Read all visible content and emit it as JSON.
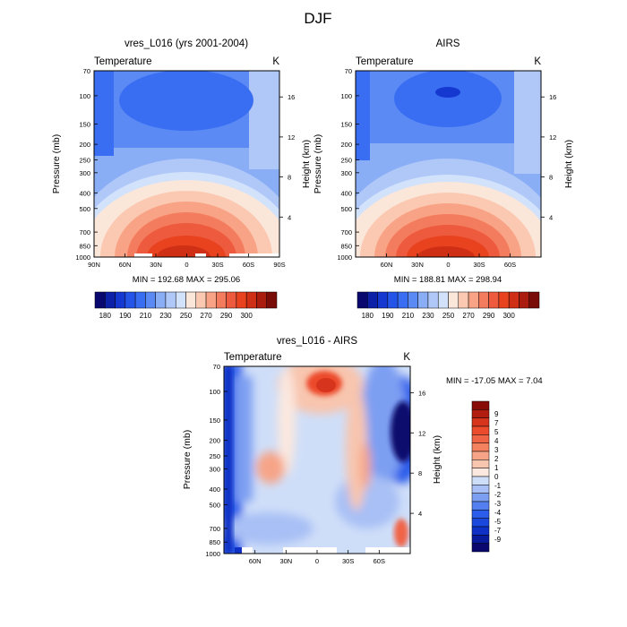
{
  "figure": {
    "title": "DJF"
  },
  "colors": {
    "temp_palette": [
      "#08086e",
      "#0c20a8",
      "#1538d0",
      "#2455e8",
      "#3a6ef2",
      "#5c8af4",
      "#8aaef6",
      "#b0c8f8",
      "#d2e2fb",
      "#fbe6da",
      "#fbc9b2",
      "#f9a386",
      "#f47c5e",
      "#ee5a3e",
      "#e8421f",
      "#cf2f14",
      "#aa1d0e",
      "#7a0c08"
    ],
    "diff_palette": [
      "#08086e",
      "#0a1a9c",
      "#0f30c4",
      "#1a47dc",
      "#2c5cea",
      "#5480ef",
      "#7d9ff2",
      "#a8c0f5",
      "#cfdef8",
      "#fbe8df",
      "#f8c5ae",
      "#f6a487",
      "#f4825f",
      "#f06446",
      "#ec4a2c",
      "#d7341d",
      "#b11d10",
      "#870c08"
    ]
  },
  "chart_data": [
    {
      "type": "heatmap",
      "title": "vres_L016 (yrs 2001-2004)",
      "left_label": "Temperature",
      "right_label": "K",
      "ylabel": "Pressure (mb)",
      "ylabel_right": "Height (km)",
      "x_ticks": [
        "90N",
        "60N",
        "30N",
        "0",
        "30S",
        "60S",
        "90S"
      ],
      "x_tick_values": [
        90,
        60,
        30,
        0,
        -30,
        -60,
        -90
      ],
      "xlim": [
        90,
        -90
      ],
      "y_ticks": [
        "70",
        "100",
        "150",
        "200",
        "250",
        "300",
        "400",
        "500",
        "700",
        "850",
        "1000"
      ],
      "y_tick_values": [
        70,
        100,
        150,
        200,
        250,
        300,
        400,
        500,
        700,
        850,
        1000
      ],
      "ylim": [
        70,
        1000
      ],
      "y_scale": "log",
      "height_ticks": [
        "4",
        "8",
        "12",
        "16"
      ],
      "height_tick_values": [
        4,
        8,
        12,
        16
      ],
      "stats": "MIN = 192.68  MAX = 295.06",
      "colorbar_labels": [
        "180",
        "190",
        "210",
        "230",
        "250",
        "270",
        "290",
        "300"
      ]
    },
    {
      "type": "heatmap",
      "title": "AIRS",
      "left_label": "Temperature",
      "right_label": "K",
      "ylabel": "Pressure (mb)",
      "ylabel_right": "Height (km)",
      "x_ticks": [
        "60N",
        "30N",
        "0",
        "30S",
        "60S"
      ],
      "x_tick_values": [
        60,
        30,
        0,
        -30,
        -60
      ],
      "xlim": [
        90,
        -90
      ],
      "y_ticks": [
        "70",
        "100",
        "150",
        "200",
        "250",
        "300",
        "400",
        "500",
        "700",
        "850",
        "1000"
      ],
      "y_tick_values": [
        70,
        100,
        150,
        200,
        250,
        300,
        400,
        500,
        700,
        850,
        1000
      ],
      "ylim": [
        70,
        1000
      ],
      "y_scale": "log",
      "height_ticks": [
        "4",
        "8",
        "12",
        "16"
      ],
      "height_tick_values": [
        4,
        8,
        12,
        16
      ],
      "stats": "MIN = 188.81  MAX = 298.94",
      "colorbar_labels": [
        "180",
        "190",
        "210",
        "230",
        "250",
        "270",
        "290",
        "300"
      ]
    },
    {
      "type": "heatmap",
      "title": "vres_L016 - AIRS",
      "left_label": "Temperature",
      "right_label": "K",
      "ylabel": "Pressure (mb)",
      "ylabel_right": "Height (km)",
      "x_ticks": [
        "60N",
        "30N",
        "0",
        "30S",
        "60S"
      ],
      "x_tick_values": [
        60,
        30,
        0,
        -30,
        -60
      ],
      "xlim": [
        90,
        -90
      ],
      "y_ticks": [
        "70",
        "100",
        "150",
        "200",
        "250",
        "300",
        "400",
        "500",
        "700",
        "850",
        "1000"
      ],
      "y_tick_values": [
        70,
        100,
        150,
        200,
        250,
        300,
        400,
        500,
        700,
        850,
        1000
      ],
      "ylim": [
        70,
        1000
      ],
      "y_scale": "log",
      "height_ticks": [
        "4",
        "8",
        "12",
        "16"
      ],
      "height_tick_values": [
        4,
        8,
        12,
        16
      ],
      "stats": "MIN = -17.05  MAX =   7.04",
      "colorbar_labels": [
        "9",
        "7",
        "5",
        "4",
        "3",
        "2",
        "1",
        "0",
        "-1",
        "-2",
        "-3",
        "-4",
        "-5",
        "-7",
        "-9"
      ]
    }
  ]
}
